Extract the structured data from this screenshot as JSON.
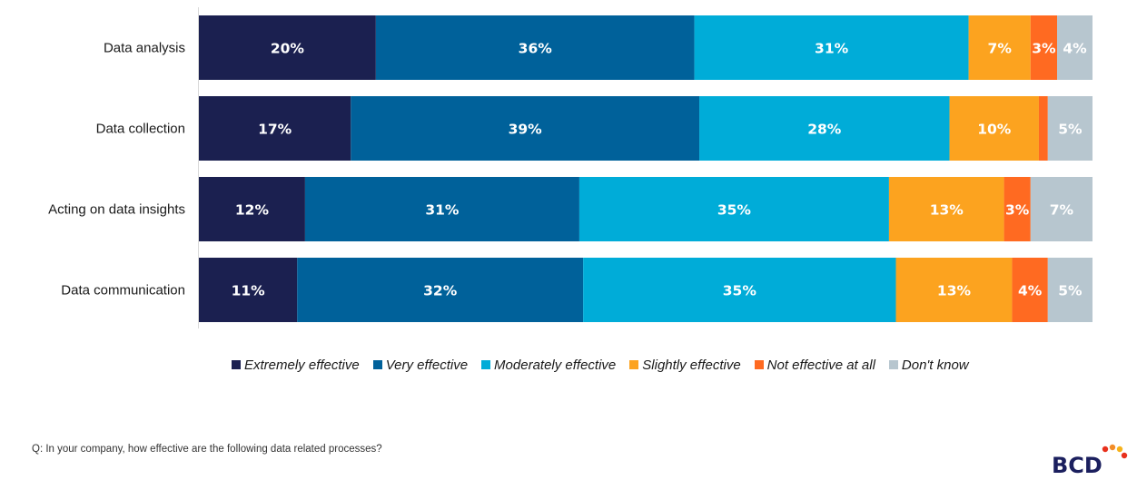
{
  "chart_data": {
    "type": "bar",
    "orientation": "horizontal",
    "stacked": true,
    "categories": [
      "Data analysis",
      "Data collection",
      "Acting on data insights",
      "Data communication"
    ],
    "series": [
      {
        "name": "Extremely effective",
        "color": "#1b2050",
        "values": [
          20,
          17,
          12,
          11
        ],
        "labels": [
          "20%",
          "17%",
          "12%",
          "11%"
        ]
      },
      {
        "name": "Very effective",
        "color": "#00619a",
        "values": [
          36,
          39,
          31,
          32
        ],
        "labels": [
          "36%",
          "39%",
          "31%",
          "32%"
        ]
      },
      {
        "name": "Moderately effective",
        "color": "#00acd8",
        "values": [
          31,
          28,
          35,
          35
        ],
        "labels": [
          "31%",
          "28%",
          "35%",
          "35%"
        ]
      },
      {
        "name": "Slightly effective",
        "color": "#fca31f",
        "values": [
          7,
          10,
          13,
          13
        ],
        "labels": [
          "7%",
          "10%",
          "13%",
          "13%"
        ]
      },
      {
        "name": "Not effective at all",
        "color": "#ff6a21",
        "values": [
          3,
          1,
          3,
          4
        ],
        "labels": [
          "3%",
          "",
          "3%",
          "4%"
        ]
      },
      {
        "name": "Don't know",
        "color": "#b7c6cf",
        "values": [
          4,
          5,
          7,
          5
        ],
        "labels": [
          "4%",
          "5%",
          "7%",
          "5%"
        ]
      }
    ],
    "xlim": [
      0,
      100
    ],
    "unit": "%",
    "grid": false,
    "legend_position": "bottom"
  },
  "footnote": "Q: In your company, how effective are the following data related processes?",
  "logo_text": "BCD",
  "logo_dot_colors": [
    "#e8301c",
    "#f28c28",
    "#f6b21b"
  ]
}
